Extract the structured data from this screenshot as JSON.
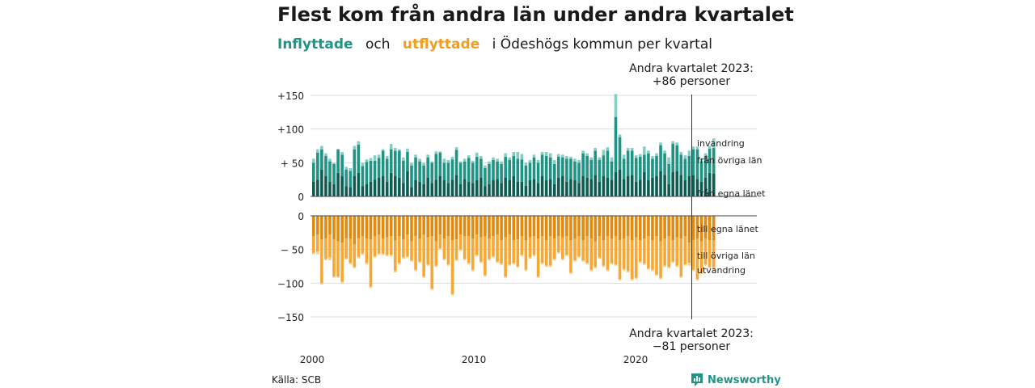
{
  "title": "Flest kom från andra län under andra kvartalet",
  "subtitle": {
    "in_word": "Inflyttade",
    "och": "och",
    "out_word": "utflyttade",
    "rest": "i Ödeshögs  kommun  per  kvartal"
  },
  "annotation_top": {
    "line1": "Andra kvartalet 2023:",
    "line2": "+86 personer"
  },
  "annotation_bottom": {
    "line1": "Andra kvartalet 2023:",
    "line2": "−81 personer"
  },
  "source": "Källa: SCB",
  "logo": {
    "name": "Newsworthy",
    "icon": "newsworthy-logo-icon"
  },
  "colors": {
    "in_same_county": "#0d5c52",
    "in_other_counties": "#1f9485",
    "in_abroad": "#86cec4",
    "out_same_county": "#e08a10",
    "out_other_counties": "#f7a733",
    "out_abroad": "#f9cf8b",
    "title_in": "#1f9485",
    "title_out": "#f29d1b"
  },
  "chart_data": {
    "type": "bar",
    "stacked": true,
    "period": "kvartal",
    "x_start": "2000 Q1",
    "x_end": "2023 Q2",
    "x_ticks": [
      "2000",
      "2010",
      "2020"
    ],
    "y_ticks_in": [
      "+150",
      "+100",
      "+ 50",
      "0"
    ],
    "y_ticks_out": [
      "0",
      "− 50",
      "−100",
      "−150"
    ],
    "ylim_in": [
      0,
      150
    ],
    "ylim_out": [
      -150,
      0
    ],
    "grid": true,
    "labels_in": [
      "invandring",
      "från övriga län",
      "från egna länet"
    ],
    "labels_out": [
      "till egna länet",
      "till övriga län",
      "utvandring"
    ],
    "series": [
      {
        "name": "från egna länet",
        "values": [
          22,
          25,
          40,
          30,
          22,
          18,
          35,
          30,
          15,
          14,
          30,
          35,
          15,
          18,
          22,
          25,
          28,
          30,
          22,
          35,
          30,
          28,
          20,
          38,
          14,
          24,
          22,
          18,
          28,
          20,
          25,
          30,
          24,
          20,
          25,
          32,
          18,
          26,
          22,
          20,
          24,
          28,
          15,
          18,
          24,
          26,
          20,
          28,
          24,
          30,
          22,
          22,
          16,
          24,
          26,
          20,
          30,
          24,
          26,
          18,
          28,
          30,
          22,
          26,
          24,
          20,
          30,
          28,
          26,
          32,
          22,
          30,
          28,
          24,
          36,
          40,
          26,
          30,
          32,
          22,
          25,
          36,
          24,
          28,
          30,
          38,
          32,
          18,
          36,
          38,
          32,
          24,
          30,
          32,
          26,
          22,
          28,
          35,
          34
        ]
      },
      {
        "name": "från övriga län",
        "values": [
          28,
          40,
          30,
          30,
          30,
          30,
          35,
          32,
          25,
          24,
          40,
          42,
          30,
          33,
          31,
          28,
          29,
          38,
          34,
          35,
          38,
          40,
          33,
          28,
          32,
          34,
          30,
          28,
          30,
          30,
          38,
          35,
          26,
          30,
          30,
          37,
          32,
          26,
          35,
          30,
          35,
          28,
          27,
          30,
          30,
          26,
          28,
          31,
          30,
          30,
          34,
          33,
          30,
          26,
          32,
          30,
          32,
          36,
          32,
          30,
          31,
          28,
          34,
          30,
          28,
          30,
          34,
          32,
          28,
          36,
          32,
          31,
          40,
          28,
          82,
          48,
          30,
          38,
          36,
          35,
          34,
          26,
          40,
          28,
          30,
          38,
          32,
          30,
          42,
          38,
          30,
          32,
          30,
          38,
          44,
          30,
          32,
          36,
          38
        ]
      },
      {
        "name": "invandring",
        "values": [
          6,
          5,
          5,
          4,
          4,
          2,
          0,
          4,
          4,
          4,
          5,
          5,
          5,
          4,
          4,
          8,
          5,
          2,
          4,
          8,
          4,
          2,
          5,
          5,
          4,
          4,
          4,
          4,
          4,
          2,
          4,
          2,
          6,
          4,
          4,
          4,
          2,
          4,
          4,
          3,
          6,
          4,
          4,
          4,
          4,
          4,
          4,
          5,
          4,
          6,
          10,
          8,
          4,
          4,
          4,
          4,
          4,
          6,
          6,
          6,
          4,
          4,
          4,
          3,
          4,
          4,
          4,
          4,
          4,
          4,
          4,
          8,
          5,
          6,
          34,
          4,
          6,
          4,
          4,
          4,
          4,
          12,
          4,
          4,
          4,
          4,
          4,
          10,
          4,
          4,
          4,
          5,
          8,
          4,
          4,
          4,
          4,
          4,
          14
        ]
      },
      {
        "name": "till egna länet",
        "values": [
          -30,
          -28,
          -35,
          -34,
          -28,
          -35,
          -38,
          -40,
          -33,
          -34,
          -42,
          -33,
          -30,
          -34,
          -35,
          -30,
          -28,
          -34,
          -32,
          -30,
          -36,
          -30,
          -35,
          -28,
          -38,
          -30,
          -34,
          -28,
          -32,
          -30,
          -38,
          -28,
          -34,
          -30,
          -36,
          -35,
          -28,
          -30,
          -30,
          -34,
          -28,
          -32,
          -30,
          -34,
          -30,
          -28,
          -36,
          -32,
          -28,
          -36,
          -35,
          -30,
          -36,
          -32,
          -30,
          -34,
          -30,
          -36,
          -30,
          -34,
          -30,
          -32,
          -30,
          -36,
          -34,
          -30,
          -36,
          -30,
          -34,
          -38,
          -30,
          -36,
          -30,
          -34,
          -30,
          -36,
          -34,
          -30,
          -36,
          -32,
          -36,
          -34,
          -30,
          -36,
          -30,
          -38,
          -34,
          -30,
          -36,
          -32,
          -34,
          -30,
          -40,
          -36,
          -34,
          -38,
          -34,
          -36,
          -36
        ]
      },
      {
        "name": "till övriga län",
        "values": [
          -25,
          -25,
          -65,
          -30,
          -34,
          -55,
          -52,
          -58,
          -30,
          -36,
          -34,
          -28,
          -26,
          -36,
          -70,
          -30,
          -28,
          -22,
          -26,
          -28,
          -46,
          -40,
          -27,
          -32,
          -28,
          -50,
          -34,
          -62,
          -40,
          -78,
          -36,
          -20,
          -30,
          -42,
          -80,
          -30,
          -22,
          -34,
          -40,
          -46,
          -30,
          -36,
          -58,
          -30,
          -30,
          -40,
          -35,
          -58,
          -44,
          -34,
          -40,
          -28,
          -44,
          -30,
          -28,
          -56,
          -40,
          -38,
          -44,
          -30,
          -24,
          -32,
          -28,
          -48,
          -32,
          -30,
          -30,
          -40,
          -46,
          -38,
          -32,
          -38,
          -50,
          -36,
          -42,
          -58,
          -45,
          -52,
          -58,
          -60,
          -32,
          -37,
          -48,
          -44,
          -57,
          -54,
          -40,
          -46,
          -32,
          -42,
          -56,
          -42,
          -30,
          -44,
          -60,
          -46,
          -38,
          -40,
          -41
        ]
      },
      {
        "name": "utvandring",
        "values": [
          -2,
          -4,
          -2,
          -2,
          -4,
          -2,
          -2,
          -2,
          -2,
          -2,
          -2,
          -2,
          -2,
          -2,
          -2,
          -2,
          -2,
          -2,
          -2,
          -2,
          -2,
          -2,
          -2,
          -2,
          -2,
          -2,
          -2,
          -2,
          -2,
          -2,
          -2,
          -2,
          -2,
          -2,
          -2,
          -2,
          -2,
          -2,
          -2,
          -2,
          -2,
          -2,
          -2,
          -2,
          -2,
          -2,
          -2,
          -2,
          -2,
          -2,
          -2,
          -2,
          -2,
          -2,
          -2,
          -2,
          -2,
          -2,
          -2,
          -2,
          -2,
          -2,
          -2,
          -2,
          -2,
          -2,
          -2,
          -2,
          -2,
          -2,
          -2,
          -2,
          -2,
          -2,
          -2,
          -2,
          -2,
          -2,
          -2,
          -2,
          -2,
          -2,
          -2,
          -2,
          -2,
          -2,
          -2,
          -2,
          -2,
          -2,
          -2,
          -2,
          -4,
          -2,
          -2,
          -2,
          -2,
          -2,
          -4
        ]
      }
    ]
  }
}
